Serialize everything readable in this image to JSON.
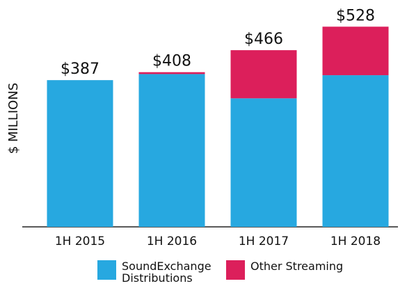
{
  "chart_data": {
    "type": "stacked_bar",
    "y_label": "$ MILLIONS",
    "categories": [
      "1H 2015",
      "1H 2016",
      "1H 2017",
      "1H 2018"
    ],
    "series": [
      {
        "name": "SoundExchange Distributions",
        "color": "#27a8e0",
        "values": [
          387,
          403,
          339,
          400
        ]
      },
      {
        "name": "Other Streaming",
        "color": "#dc1f5b",
        "values": [
          0,
          5,
          127,
          128
        ]
      }
    ],
    "totals": [
      387,
      408,
      466,
      528
    ],
    "total_labels": [
      "$387",
      "$408",
      "$466",
      "$528"
    ],
    "ylim": [
      0,
      580
    ]
  }
}
